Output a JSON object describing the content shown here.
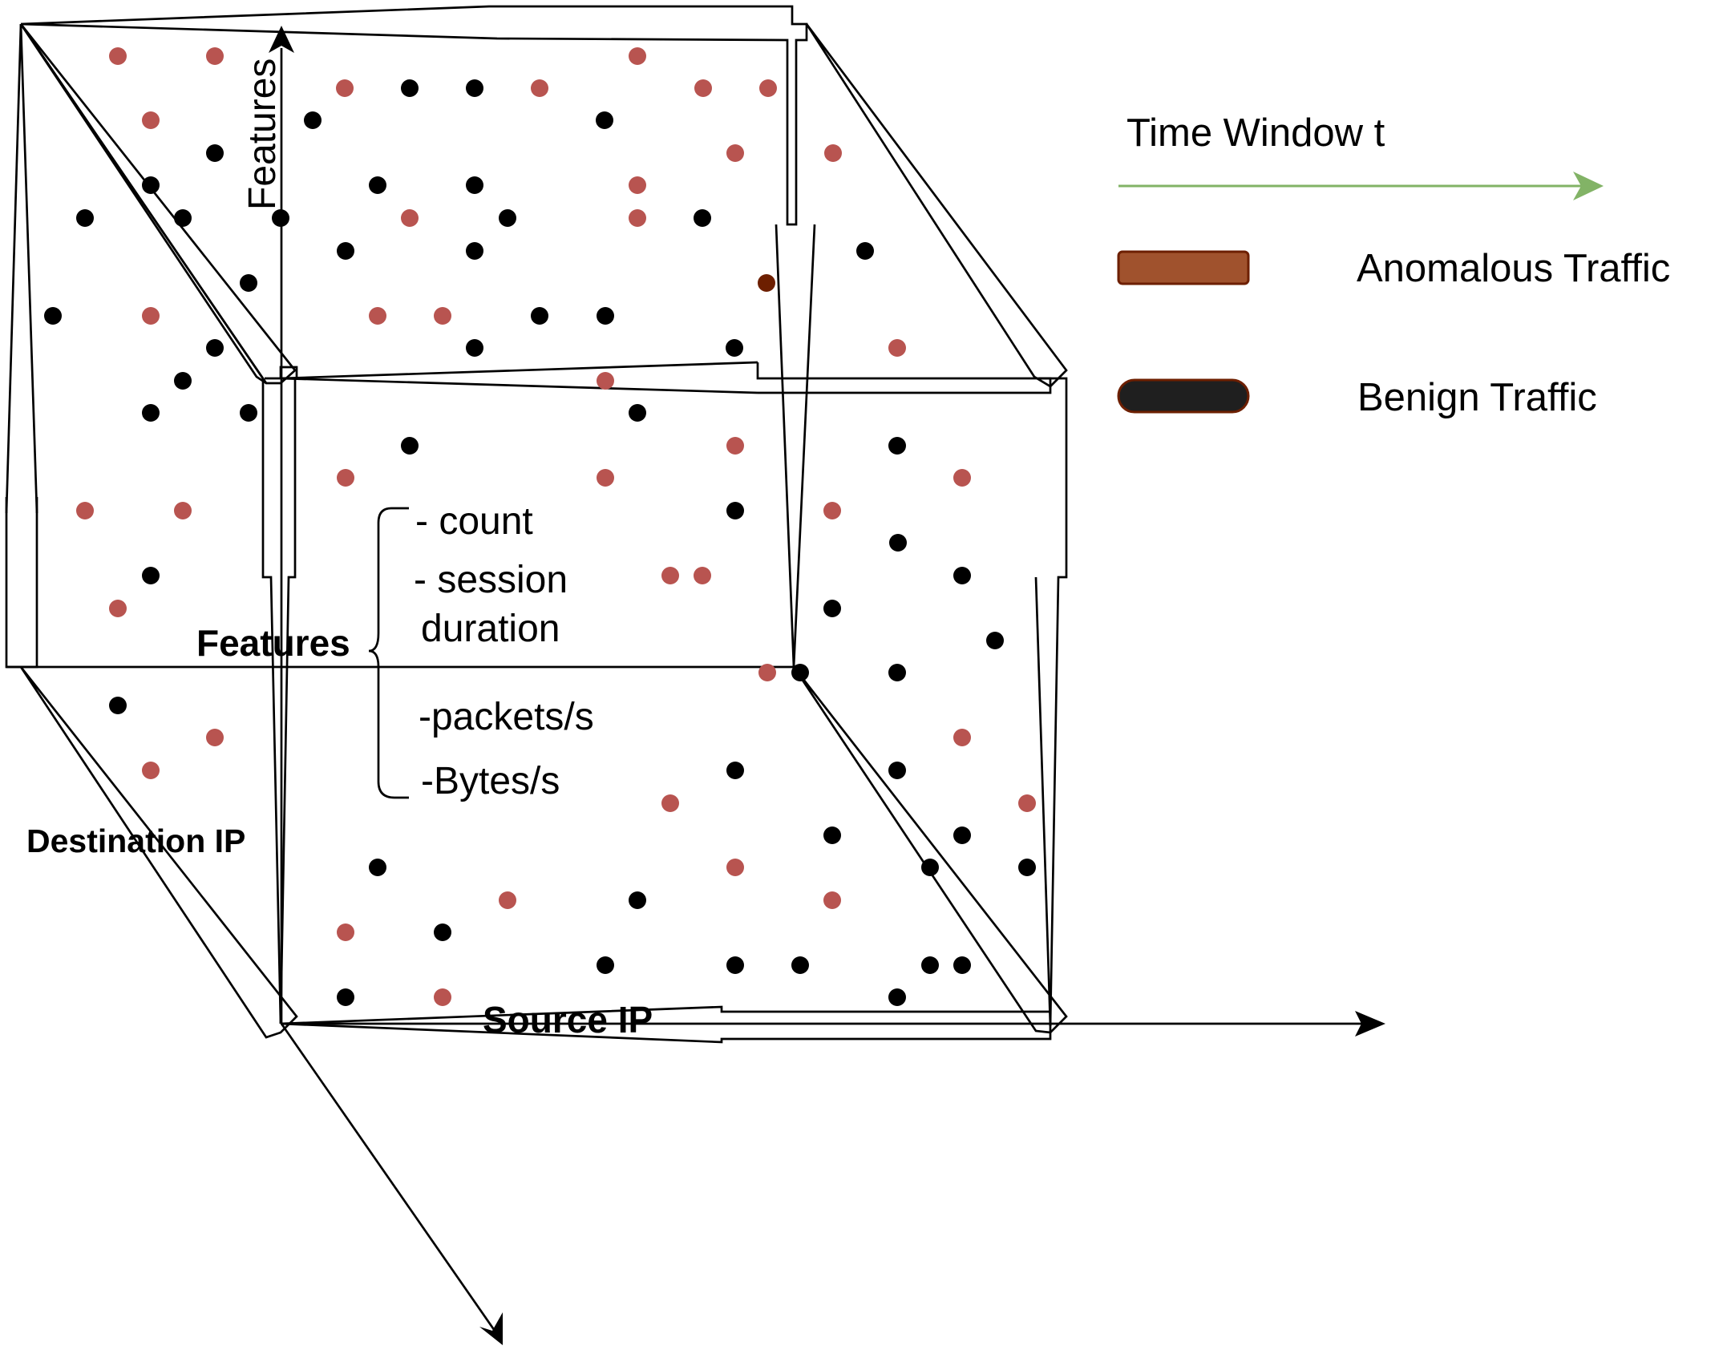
{
  "labels": {
    "features_vertical": "Features",
    "features_bold": "Features",
    "destination_ip": "Destination IP",
    "source_ip": "Source IP",
    "feature_list": [
      "- count",
      "- session",
      "duration",
      "-packets/s",
      "-Bytes/s"
    ]
  },
  "legend": {
    "time_window": "Time Window t",
    "anomalous": "Anomalous Traffic",
    "benign": "Benign Traffic"
  },
  "colors": {
    "anomalous_point": "#b85450",
    "benign_point": "#000000",
    "anomalous_swatch_fill": "#a0522d",
    "anomalous_swatch_stroke": "#6d1f00",
    "benign_swatch_fill": "#1f1f1f",
    "benign_swatch_stroke": "#6d1f00",
    "time_arrow": "#82b366",
    "outlier_point": "#6d1f00"
  }
}
